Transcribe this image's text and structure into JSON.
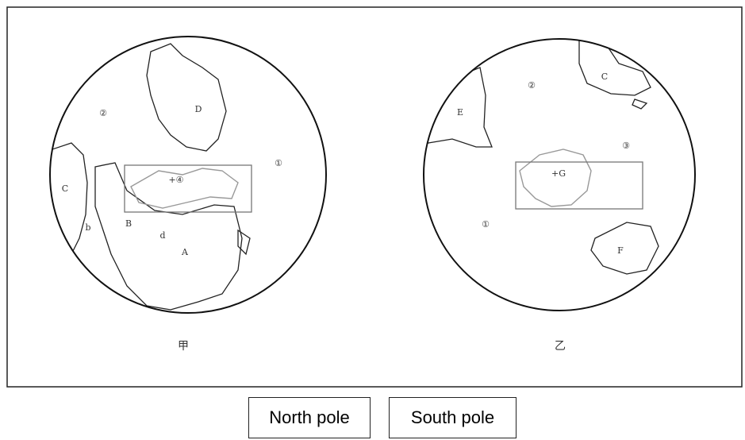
{
  "maps": [
    {
      "caption": "甲",
      "labels": [
        "②",
        "D",
        "①",
        "C",
        "+④",
        "b",
        "B",
        "d",
        "A"
      ]
    },
    {
      "caption": "乙",
      "labels": [
        "②",
        "C",
        "E",
        "③",
        "+G",
        "①",
        "F"
      ]
    }
  ],
  "buttons": [
    "North pole",
    "South pole"
  ]
}
